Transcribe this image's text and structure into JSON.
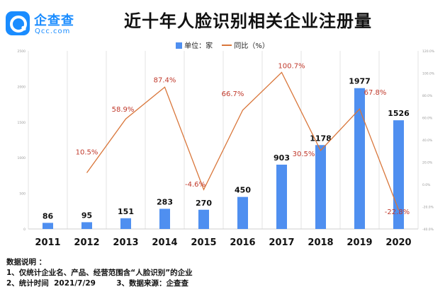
{
  "brand": {
    "name": "企查查",
    "domain": "Qcc.com",
    "colors": {
      "primary": "#1a8cff"
    }
  },
  "chart_data": {
    "type": "bar",
    "title": "近十年人脸识别相关企业注册量",
    "categories": [
      "2011",
      "2012",
      "2013",
      "2014",
      "2015",
      "2016",
      "2017",
      "2018",
      "2019",
      "2020"
    ],
    "series": [
      {
        "name": "单位：家",
        "type": "bar",
        "axis": "left",
        "color": "#4f8ff0",
        "values": [
          86,
          95,
          151,
          283,
          270,
          450,
          903,
          1178,
          1977,
          1526
        ],
        "labels": [
          "86",
          "95",
          "151",
          "283",
          "270",
          "450",
          "903",
          "1178",
          "1977",
          "1526"
        ]
      },
      {
        "name": "同比（%）",
        "type": "line",
        "axis": "right",
        "color": "#d9763a",
        "values": [
          null,
          10.5,
          58.9,
          87.4,
          -4.6,
          66.7,
          100.7,
          30.5,
          67.8,
          -22.8
        ],
        "labels": [
          "",
          "10.5%",
          "58.9%",
          "87.4%",
          "-4.6%",
          "66.7%",
          "100.7%",
          "30.5%",
          "67.8%",
          "-22.8%"
        ]
      }
    ],
    "y_left": {
      "min": 0,
      "max": 2500,
      "ticks": [
        "0",
        "500",
        "1000",
        "1500",
        "2000",
        "2500"
      ]
    },
    "y_right": {
      "min": -40,
      "max": 120,
      "ticks": [
        "-40.0%",
        "-20.0%",
        "0.0%",
        "20.0%",
        "40.0%",
        "60.0%",
        "80.0%",
        "100.0%",
        "120.0%"
      ]
    },
    "grid": "vertical",
    "legend_position": "top-center"
  },
  "notes": {
    "heading": "数据说明 ：",
    "line1": "1、仅统计企业名、产品、经营范围含“人脸识别”的企业",
    "line2a": "2、统计时间  2021/7/29",
    "line2b": "3、数据来源：企查查"
  }
}
